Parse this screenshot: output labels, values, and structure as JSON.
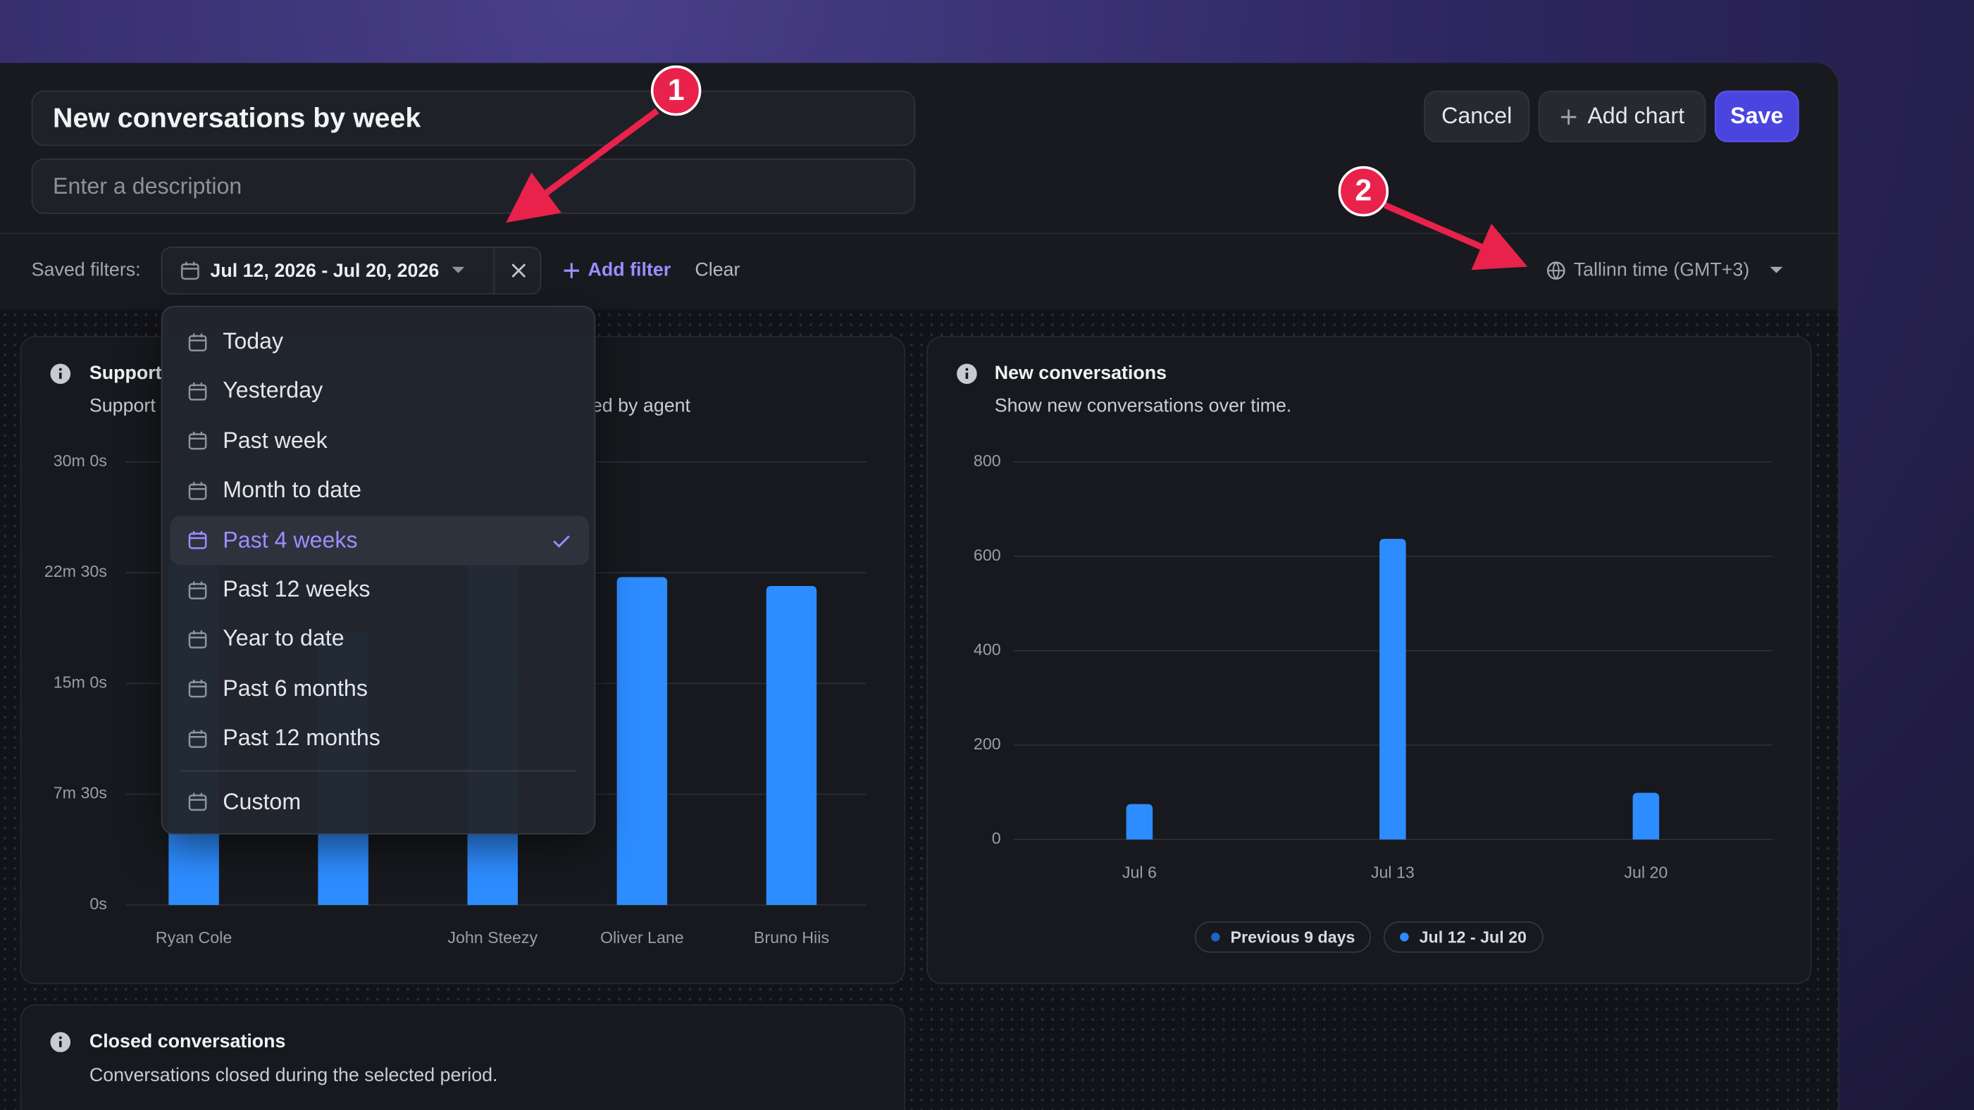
{
  "header": {
    "title": "New conversations by week",
    "description_placeholder": "Enter a description",
    "buttons": [
      "Cancel",
      "Add chart",
      "Save"
    ]
  },
  "filters": {
    "label": "Saved filters:",
    "date_range": "Jul 12, 2026 - Jul 20, 2026",
    "add_filter": "Add filter",
    "clear": "Clear",
    "timezone": "Tallinn time (GMT+3)"
  },
  "date_menu": {
    "options": [
      "Today",
      "Yesterday",
      "Past week",
      "Month to date",
      "Past 4 weeks",
      "Past 12 weeks",
      "Year to date",
      "Past 6 months",
      "Past 12 months",
      "Custom"
    ],
    "selected": 4
  },
  "annotations": [
    "1",
    "2"
  ],
  "chart_data": [
    {
      "type": "bar",
      "title": "Support",
      "subtitle_fragments": [
        "Support",
        "ed by agent"
      ],
      "categories": [
        "Ryan Cole",
        null,
        "John Steezy",
        "Oliver Lane",
        "Bruno Hiis"
      ],
      "values": [
        23,
        18.5,
        24,
        22.2,
        21.6
      ],
      "color": "#2d8cff",
      "ylim": [
        0,
        30
      ],
      "yticks": [
        {
          "value": 0,
          "label": "0s"
        },
        {
          "value": 7.5,
          "label": "7m 30s"
        },
        {
          "value": 15,
          "label": "15m 0s"
        },
        {
          "value": 22.5,
          "label": "22m 30s"
        },
        {
          "value": 30,
          "label": "30m 0s"
        }
      ],
      "grid": true
    },
    {
      "type": "bar",
      "title": "New conversations",
      "subtitle": "Show new conversations over time.",
      "categories": [
        "Jul 6",
        "Jul 13",
        "Jul 20"
      ],
      "series": [
        {
          "name": "Previous 9 days",
          "color": "#1f63c4",
          "values": [
            null,
            null,
            null
          ]
        },
        {
          "name": "Jul 12 - Jul 20",
          "color": "#2d8cff",
          "values": [
            75,
            637,
            99
          ]
        }
      ],
      "ylim": [
        0,
        800
      ],
      "yticks": [
        0,
        200,
        400,
        600,
        800
      ],
      "grid": true,
      "legend": "bottom"
    }
  ],
  "closed_card": {
    "title": "Closed conversations",
    "subtitle": "Conversations closed during the selected period."
  }
}
